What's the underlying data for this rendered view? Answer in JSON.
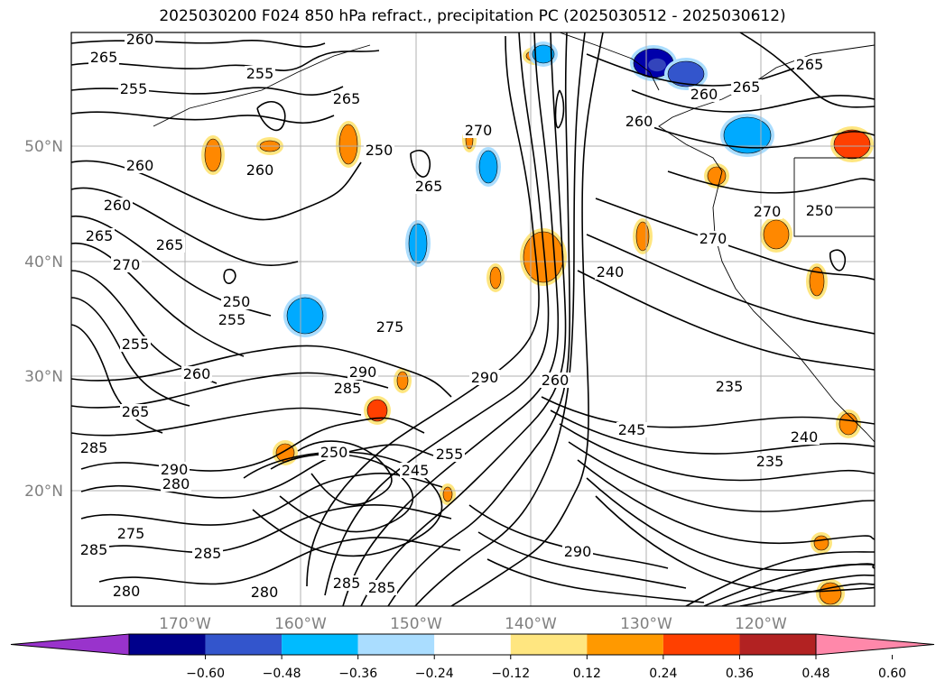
{
  "title": "2025030200 F024 850 hPa refract., precipitation PC (2025030512 - 2025030612)",
  "map": {
    "lat_labels": [
      "50°N",
      "40°N",
      "30°N",
      "20°N"
    ],
    "lon_labels": [
      "170°W",
      "160°W",
      "150°W",
      "140°W",
      "130°W",
      "120°W"
    ],
    "contour_labels": [
      "260",
      "255",
      "265",
      "255",
      "260",
      "260",
      "265",
      "265",
      "270",
      "255",
      "250",
      "255",
      "260",
      "265",
      "260",
      "250",
      "265",
      "270",
      "275",
      "290",
      "285",
      "285",
      "290",
      "280",
      "250",
      "255",
      "245",
      "290",
      "285",
      "290",
      "240",
      "235",
      "245",
      "235",
      "240",
      "270",
      "260",
      "260",
      "265",
      "265",
      "270",
      "250",
      "280",
      "285",
      "285",
      "275",
      "285",
      "280",
      "265",
      "260"
    ],
    "anomaly_blobs": [
      {
        "color": "#ff8800"
      },
      {
        "color": "#ff8800"
      },
      {
        "color": "#ff8800"
      },
      {
        "color": "#ff8800"
      },
      {
        "color": "#ff8800"
      },
      {
        "color": "#ff8800"
      },
      {
        "color": "#ff8800"
      },
      {
        "color": "#ff8800"
      },
      {
        "color": "#ff4000"
      },
      {
        "color": "#ff8800"
      },
      {
        "color": "#00aaff"
      },
      {
        "color": "#00aaff"
      },
      {
        "color": "#00aaff"
      },
      {
        "color": "#0000aa"
      },
      {
        "color": "#00aaff"
      },
      {
        "color": "#3355cc"
      },
      {
        "color": "#00aaff"
      },
      {
        "color": "#ff4000"
      },
      {
        "color": "#ff8800"
      },
      {
        "color": "#ff8800"
      },
      {
        "color": "#ff8800"
      },
      {
        "color": "#ff8800"
      },
      {
        "color": "#ff8800"
      },
      {
        "color": "#ff8800"
      },
      {
        "color": "#ff8800"
      },
      {
        "color": "#ff8800"
      }
    ]
  },
  "colorbar": {
    "labels": [
      "−0.60",
      "−0.48",
      "−0.36",
      "−0.24",
      "−0.12",
      "0.12",
      "0.24",
      "0.36",
      "0.48",
      "0.60"
    ],
    "colors": [
      "#9933cc",
      "#00008b",
      "#3355cc",
      "#00bbff",
      "#aaddff",
      "#ffffff",
      "#ffe680",
      "#ff9900",
      "#ff4000",
      "#b22222",
      "#ff88aa"
    ]
  }
}
